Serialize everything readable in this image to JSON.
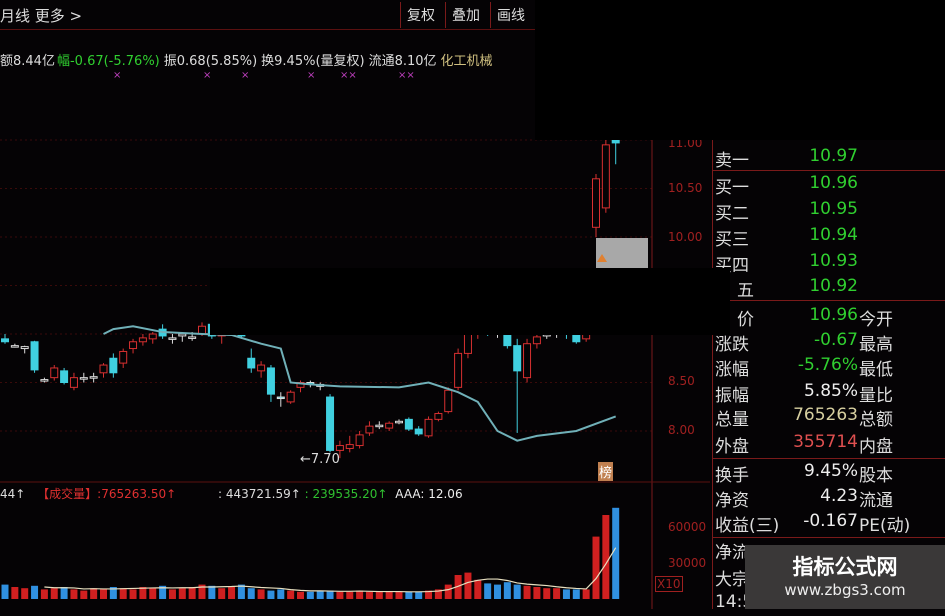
{
  "header": {
    "title": "月线 更多 >",
    "buttons": [
      "复权",
      "叠加",
      "画线"
    ]
  },
  "info": {
    "amount": "额8.44亿",
    "change_label": "幅",
    "change": "-0.67(-5.76%)",
    "amplitude": "振0.68(5.85%)",
    "turnover": "换9.45%(量复权)",
    "float": "流通8.10亿",
    "sector": "化工机械"
  },
  "price_axis": [
    "11.00",
    "10.50",
    "10.00",
    "8.50",
    "8.00"
  ],
  "low_marker": "←7.70",
  "badge": "榜",
  "volume_header": {
    "prefix": "44↑",
    "name": "【成交量】",
    "v1": ":765263.50↑",
    "v2": ": 443721.59↑",
    "v3": ": 239535.20↑",
    "v4": "AAA: 12.06"
  },
  "volume_axis": [
    "60000",
    "30000",
    "X10"
  ],
  "colors": {
    "up": "#d83030",
    "down": "#40d0e0",
    "ma": "#70b0b8",
    "green": "#30d030",
    "yellow": "#d8d0a0",
    "red": "#e05050"
  },
  "candles": [
    [
      8.95,
      9.0,
      8.9,
      8.92
    ],
    [
      8.88,
      8.9,
      8.86,
      8.88
    ],
    [
      8.85,
      8.88,
      8.8,
      8.87
    ],
    [
      8.92,
      8.93,
      8.6,
      8.63
    ],
    [
      8.52,
      8.55,
      8.5,
      8.53
    ],
    [
      8.55,
      8.68,
      8.52,
      8.65
    ],
    [
      8.62,
      8.65,
      8.48,
      8.5
    ],
    [
      8.45,
      8.6,
      8.42,
      8.55
    ],
    [
      8.55,
      8.6,
      8.5,
      8.55
    ],
    [
      8.55,
      8.6,
      8.5,
      8.56
    ],
    [
      8.6,
      8.7,
      8.55,
      8.68
    ],
    [
      8.75,
      8.8,
      8.55,
      8.6
    ],
    [
      8.7,
      8.85,
      8.65,
      8.82
    ],
    [
      8.85,
      8.95,
      8.8,
      8.92
    ],
    [
      8.92,
      9.0,
      8.88,
      8.96
    ],
    [
      8.95,
      9.02,
      8.9,
      9.0
    ],
    [
      9.05,
      9.1,
      8.95,
      8.98
    ],
    [
      8.95,
      9.0,
      8.9,
      8.96
    ],
    [
      8.98,
      9.02,
      8.92,
      9.0
    ],
    [
      8.96,
      9.02,
      8.93,
      8.97
    ],
    [
      9.0,
      9.12,
      8.98,
      9.08
    ],
    [
      9.1,
      9.2,
      8.95,
      8.98
    ],
    [
      8.98,
      9.05,
      8.9,
      9.03
    ],
    [
      9.05,
      9.3,
      9.0,
      9.2
    ],
    [
      9.15,
      9.2,
      8.95,
      8.98
    ],
    [
      8.75,
      8.85,
      8.6,
      8.65
    ],
    [
      8.62,
      8.72,
      8.55,
      8.68
    ],
    [
      8.65,
      8.68,
      8.3,
      8.38
    ],
    [
      8.35,
      8.4,
      8.25,
      8.34
    ],
    [
      8.3,
      8.42,
      8.28,
      8.4
    ],
    [
      8.45,
      8.52,
      8.4,
      8.5
    ],
    [
      8.5,
      8.52,
      8.45,
      8.48
    ],
    [
      8.48,
      8.5,
      8.42,
      8.46
    ],
    [
      8.35,
      8.38,
      7.78,
      7.8
    ],
    [
      7.8,
      7.9,
      7.72,
      7.85
    ],
    [
      7.82,
      7.95,
      7.78,
      7.86
    ],
    [
      7.85,
      8.0,
      7.82,
      7.96
    ],
    [
      7.98,
      8.1,
      7.95,
      8.05
    ],
    [
      8.06,
      8.1,
      8.02,
      8.06
    ],
    [
      8.03,
      8.1,
      8.0,
      8.08
    ],
    [
      8.1,
      8.12,
      8.07,
      8.1
    ],
    [
      8.12,
      8.14,
      8.0,
      8.02
    ],
    [
      8.02,
      8.05,
      7.95,
      7.97
    ],
    [
      7.95,
      8.15,
      7.93,
      8.12
    ],
    [
      8.12,
      8.2,
      8.1,
      8.18
    ],
    [
      8.2,
      8.45,
      8.18,
      8.42
    ],
    [
      8.45,
      8.85,
      8.42,
      8.8
    ],
    [
      8.8,
      9.05,
      8.75,
      9.0
    ],
    [
      9.0,
      9.1,
      8.95,
      9.05
    ],
    [
      9.05,
      9.08,
      8.98,
      9.02
    ],
    [
      9.02,
      9.06,
      8.96,
      9.0
    ],
    [
      9.05,
      9.1,
      8.85,
      8.88
    ],
    [
      8.88,
      8.95,
      7.98,
      8.62
    ],
    [
      8.55,
      8.95,
      8.5,
      8.9
    ],
    [
      8.9,
      9.0,
      8.85,
      8.97
    ],
    [
      8.98,
      9.05,
      8.95,
      9.0
    ],
    [
      9.0,
      9.05,
      8.96,
      9.02
    ],
    [
      9.03,
      9.05,
      8.95,
      9.0
    ],
    [
      9.05,
      9.06,
      8.9,
      8.92
    ],
    [
      8.95,
      9.1,
      8.92,
      9.08
    ],
    [
      10.1,
      10.65,
      10.0,
      10.6
    ],
    [
      10.3,
      11.0,
      10.25,
      10.95
    ],
    [
      11.0,
      11.02,
      10.75,
      10.97
    ]
  ],
  "ma": [
    [
      10,
      9.0
    ],
    [
      11,
      9.05
    ],
    [
      13,
      9.08
    ],
    [
      16,
      9.02
    ],
    [
      20,
      9.0
    ],
    [
      23,
      8.99
    ],
    [
      26,
      8.9
    ],
    [
      28,
      8.85
    ],
    [
      29,
      8.5
    ],
    [
      31,
      8.48
    ],
    [
      34,
      8.46
    ],
    [
      40,
      8.45
    ],
    [
      43,
      8.5
    ],
    [
      46,
      8.4
    ],
    [
      48,
      8.3
    ],
    [
      50,
      8.0
    ],
    [
      52,
      7.9
    ],
    [
      54,
      7.95
    ],
    [
      58,
      8.0
    ],
    [
      62,
      8.15
    ]
  ],
  "volumes": [
    12000,
    10000,
    9000,
    11000,
    8000,
    9000,
    10000,
    8000,
    7000,
    9000,
    8000,
    10000,
    9000,
    8000,
    10000,
    9000,
    11000,
    8000,
    9000,
    10000,
    12000,
    11000,
    9000,
    10000,
    12000,
    9000,
    8000,
    7000,
    8000,
    7000,
    6000,
    6000,
    7000,
    7000,
    6000,
    6000,
    7000,
    6000,
    6000,
    6000,
    6000,
    6000,
    6000,
    7000,
    8000,
    12000,
    20000,
    22000,
    16000,
    13000,
    12000,
    14000,
    12000,
    11000,
    10000,
    9000,
    9000,
    8000,
    8000,
    8000,
    52000,
    70000,
    76000
  ],
  "panel": {
    "rows": [
      {
        "l": "卖一",
        "v": "10.97",
        "c": "green"
      },
      {
        "l": "买一",
        "v": "10.96",
        "c": "green"
      },
      {
        "l": "买二",
        "v": "10.95",
        "c": "green"
      },
      {
        "l": "买三",
        "v": "10.94",
        "c": "green"
      },
      {
        "l": "买四",
        "v": "10.93",
        "c": "green"
      },
      {
        "l": "五",
        "v": "10.92",
        "c": "green"
      },
      {
        "l": "价",
        "v": "10.96",
        "c": "green",
        "r": "今开"
      },
      {
        "l": "涨跌",
        "v": "-0.67",
        "c": "green",
        "r": "最高"
      },
      {
        "l": "涨幅",
        "v": "-5.76%",
        "c": "green",
        "r": "最低"
      },
      {
        "l": "振幅",
        "v": "5.85%",
        "c": "white",
        "r": "量比"
      },
      {
        "l": "总量",
        "v": "765263",
        "c": "yellow",
        "r": "总额"
      },
      {
        "l": "外盘",
        "v": "355714",
        "c": "red",
        "r": "内盘"
      },
      {
        "l": "换手",
        "v": "9.45%",
        "c": "white",
        "r": "股本"
      },
      {
        "l": "净资",
        "v": "4.23",
        "c": "white",
        "r": "流通"
      },
      {
        "l": "收益(三)",
        "v": "-0.167",
        "c": "white",
        "r": "PE(动)"
      },
      {
        "l": "净流",
        "v": "",
        "c": "white"
      },
      {
        "l": "大宗",
        "v": "",
        "c": "white"
      },
      {
        "l": "14:5",
        "v": "",
        "c": "white"
      }
    ]
  },
  "watermark": {
    "title": "指标公式网",
    "url": "www.zbgs3.com"
  }
}
